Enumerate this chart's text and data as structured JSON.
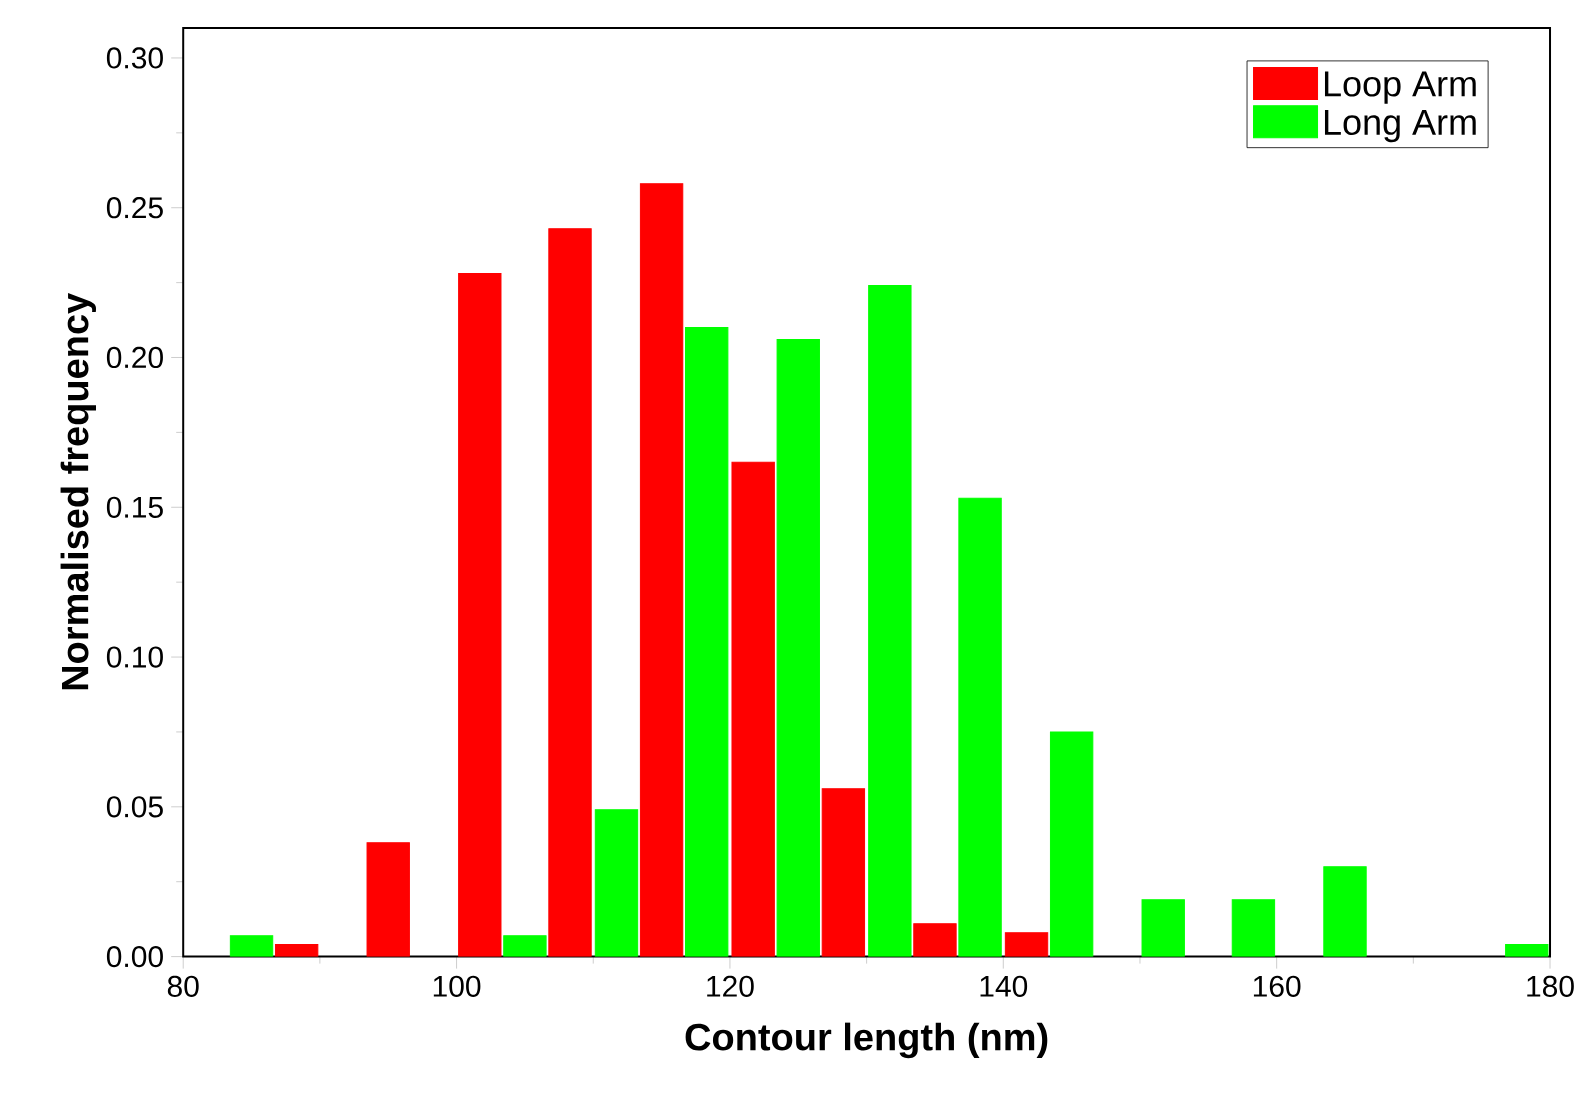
{
  "chart_data": {
    "type": "bar",
    "xlabel": "Contour length (nm)",
    "ylabel": "Normalised frequency",
    "xlim": [
      80,
      180
    ],
    "xticks": [
      80,
      100,
      120,
      140,
      160,
      180
    ],
    "ylim": [
      0,
      0.31
    ],
    "yticks": [
      {
        "value": 0,
        "label": "0.00"
      },
      {
        "value": 0.05,
        "label": "0.05"
      },
      {
        "value": 0.1,
        "label": "0.10"
      },
      {
        "value": 0.15,
        "label": "0.15"
      },
      {
        "value": 0.2,
        "label": "0.20"
      },
      {
        "value": 0.25,
        "label": "0.25"
      },
      {
        "value": 0.3,
        "label": "0.30"
      }
    ],
    "legend": "top right",
    "grid": false,
    "series": [
      {
        "name": "Loop Arm",
        "color": "#ff0000",
        "x": [
          88.3,
          95,
          101.7,
          108.3,
          115,
          121.7,
          128.3,
          135,
          141.7
        ],
        "values": [
          0.004,
          0.038,
          0.228,
          0.243,
          0.258,
          0.165,
          0.056,
          0.011,
          0.008
        ]
      },
      {
        "name": "Long Arm",
        "color": "#00ff00",
        "x": [
          85,
          105,
          111.7,
          118.3,
          125,
          131.7,
          138.3,
          145,
          151.7,
          158.3,
          165,
          178.3
        ],
        "values": [
          0.007,
          0.007,
          0.049,
          0.21,
          0.206,
          0.224,
          0.153,
          0.075,
          0.019,
          0.019,
          0.03,
          0.004
        ]
      }
    ]
  }
}
